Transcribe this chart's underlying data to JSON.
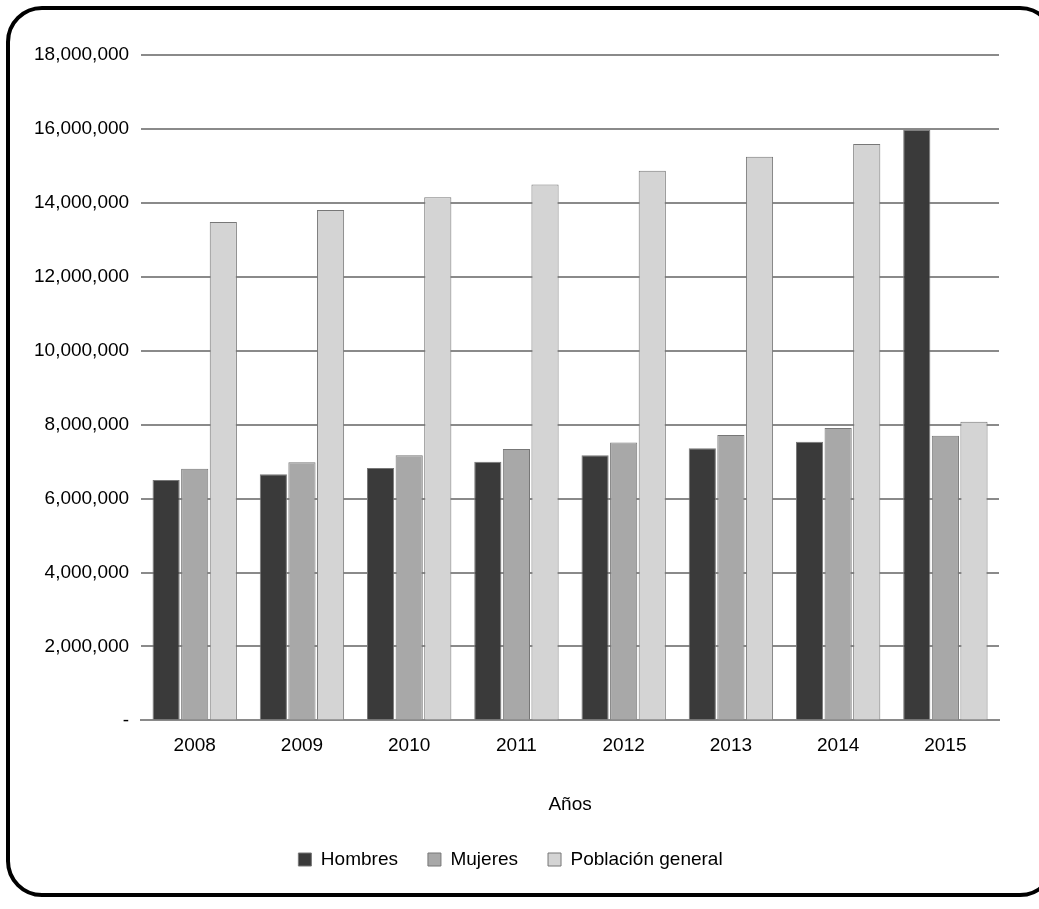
{
  "chart_data": {
    "type": "bar",
    "xlabel": "Años",
    "categories": [
      "2008",
      "2009",
      "2010",
      "2011",
      "2012",
      "2013",
      "2014",
      "2015"
    ],
    "series": [
      {
        "name": "Hombres",
        "color": "#3a3a3a",
        "values": [
          6500000,
          6660000,
          6830000,
          7000000,
          7170000,
          7360000,
          7540000,
          15980000
        ]
      },
      {
        "name": "Mujeres",
        "color": "#a8a8a8",
        "values": [
          6810000,
          6980000,
          7170000,
          7340000,
          7520000,
          7720000,
          7910000,
          7700000
        ]
      },
      {
        "name": "Población general",
        "color": "#d4d4d4",
        "values": [
          13480000,
          13810000,
          14150000,
          14500000,
          14870000,
          15250000,
          15590000,
          8080000
        ]
      }
    ],
    "ylim": [
      0,
      18000000
    ],
    "yticks": [
      {
        "value": 0,
        "label": "-"
      },
      {
        "value": 2000000,
        "label": "2,000,000"
      },
      {
        "value": 4000000,
        "label": "4,000,000"
      },
      {
        "value": 6000000,
        "label": "6,000,000"
      },
      {
        "value": 8000000,
        "label": "8,000,000"
      },
      {
        "value": 10000000,
        "label": "10,000,000"
      },
      {
        "value": 12000000,
        "label": "12,000,000"
      },
      {
        "value": 14000000,
        "label": "14,000,000"
      },
      {
        "value": 16000000,
        "label": "16,000,000"
      },
      {
        "value": 18000000,
        "label": "18,000,000"
      }
    ],
    "grid": "y",
    "legend": "bottom"
  }
}
